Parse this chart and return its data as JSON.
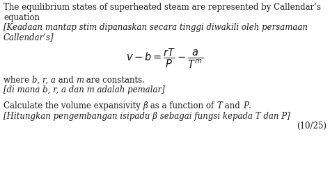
{
  "bg_color": "#ffffff",
  "text_color": "#1a1a1a",
  "fontsize_main": 8.5,
  "fontsize_eq": 10.5,
  "lines": [
    {
      "text": "The equilibrium states of superheated steam are represented by Callendar’s",
      "style": "normal",
      "indent": 0.012
    },
    {
      "text": "equation",
      "style": "normal",
      "indent": 0.012
    },
    {
      "text": "[Keadaan mantap stim dipanaskan secara tinggi diwakili oleh persamaan",
      "style": "italic",
      "indent": 0.012
    },
    {
      "text": "Callendar’s]",
      "style": "italic",
      "indent": 0.012
    }
  ],
  "equation": "$v-b=\\dfrac{rT}{P}-\\dfrac{a}{T^{m}}$",
  "where_line": [
    {
      "text": "where ",
      "style": "normal"
    },
    {
      "text": "b, r, a",
      "style": "italic"
    },
    {
      "text": " and ",
      "style": "normal"
    },
    {
      "text": "m",
      "style": "italic"
    },
    {
      "text": " are constants.",
      "style": "normal"
    }
  ],
  "line6": "[di mana b, r, a dan m adalah pemalar]",
  "calc_line": [
    {
      "text": "Calculate the volume expansivity ",
      "style": "normal"
    },
    {
      "text": "β",
      "style": "italic"
    },
    {
      "text": " as a function of ",
      "style": "normal"
    },
    {
      "text": "T",
      "style": "italic"
    },
    {
      "text": " and ",
      "style": "normal"
    },
    {
      "text": "P",
      "style": "italic"
    },
    {
      "text": ".",
      "style": "normal"
    }
  ],
  "line8": "[Hitungkan pengembangan isipadu β sebagai fungsi kepada T dan P]",
  "score": "(10/25)"
}
